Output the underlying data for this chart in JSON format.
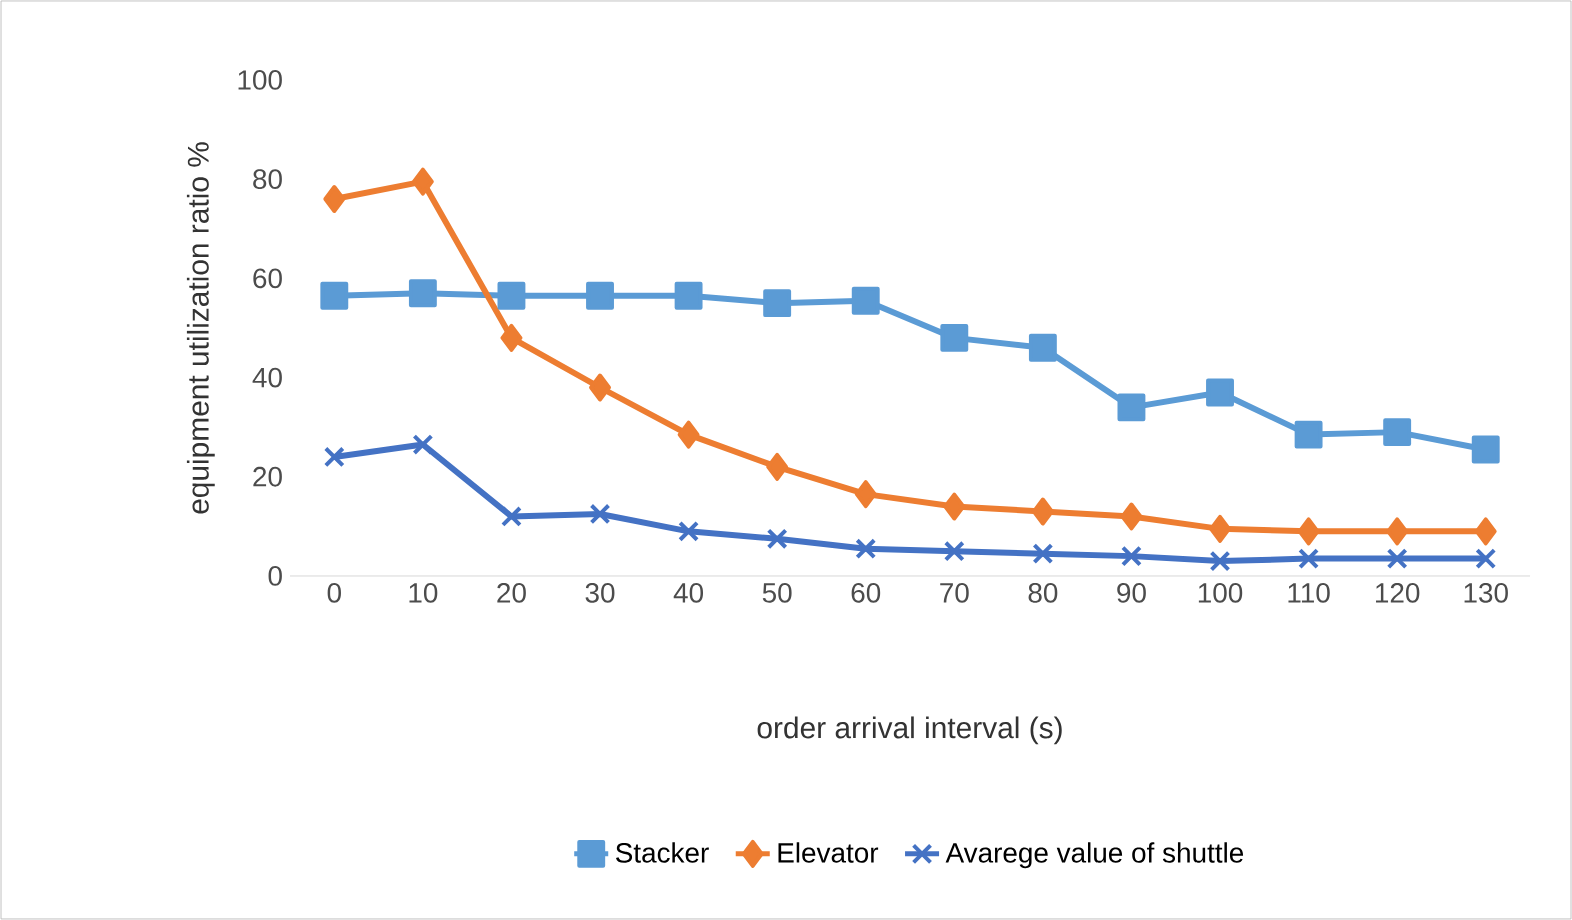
{
  "chart_data": {
    "type": "line",
    "xlabel": "order arrival interval (s)",
    "ylabel": "equipment utilization ratio %",
    "categories": [
      "0",
      "10",
      "20",
      "30",
      "40",
      "50",
      "60",
      "70",
      "80",
      "90",
      "100",
      "110",
      "120",
      "130"
    ],
    "series": [
      {
        "name": "Stacker",
        "color": "#5b9bd5",
        "marker": "square",
        "values": [
          56.5,
          57,
          56.5,
          56.5,
          56.5,
          55,
          55.5,
          48,
          46,
          34,
          37,
          28.5,
          29,
          25.5
        ]
      },
      {
        "name": "Elevator",
        "color": "#ed7d31",
        "marker": "diamond",
        "values": [
          76,
          79.5,
          48,
          38,
          28.5,
          22,
          16.5,
          14,
          13,
          12,
          9.5,
          9,
          9,
          9
        ]
      },
      {
        "name": "Avarege value of shuttle",
        "color": "#4472c4",
        "marker": "cross",
        "values": [
          24,
          26.5,
          12,
          12.5,
          9,
          7.5,
          5.5,
          5,
          4.5,
          4,
          3,
          3.5,
          3.5,
          3.5
        ]
      }
    ],
    "ylim": [
      0,
      100
    ],
    "yticks": [
      0,
      20,
      40,
      60,
      80,
      100
    ],
    "grid": false,
    "legend": "bottom",
    "line_style": "solid"
  }
}
